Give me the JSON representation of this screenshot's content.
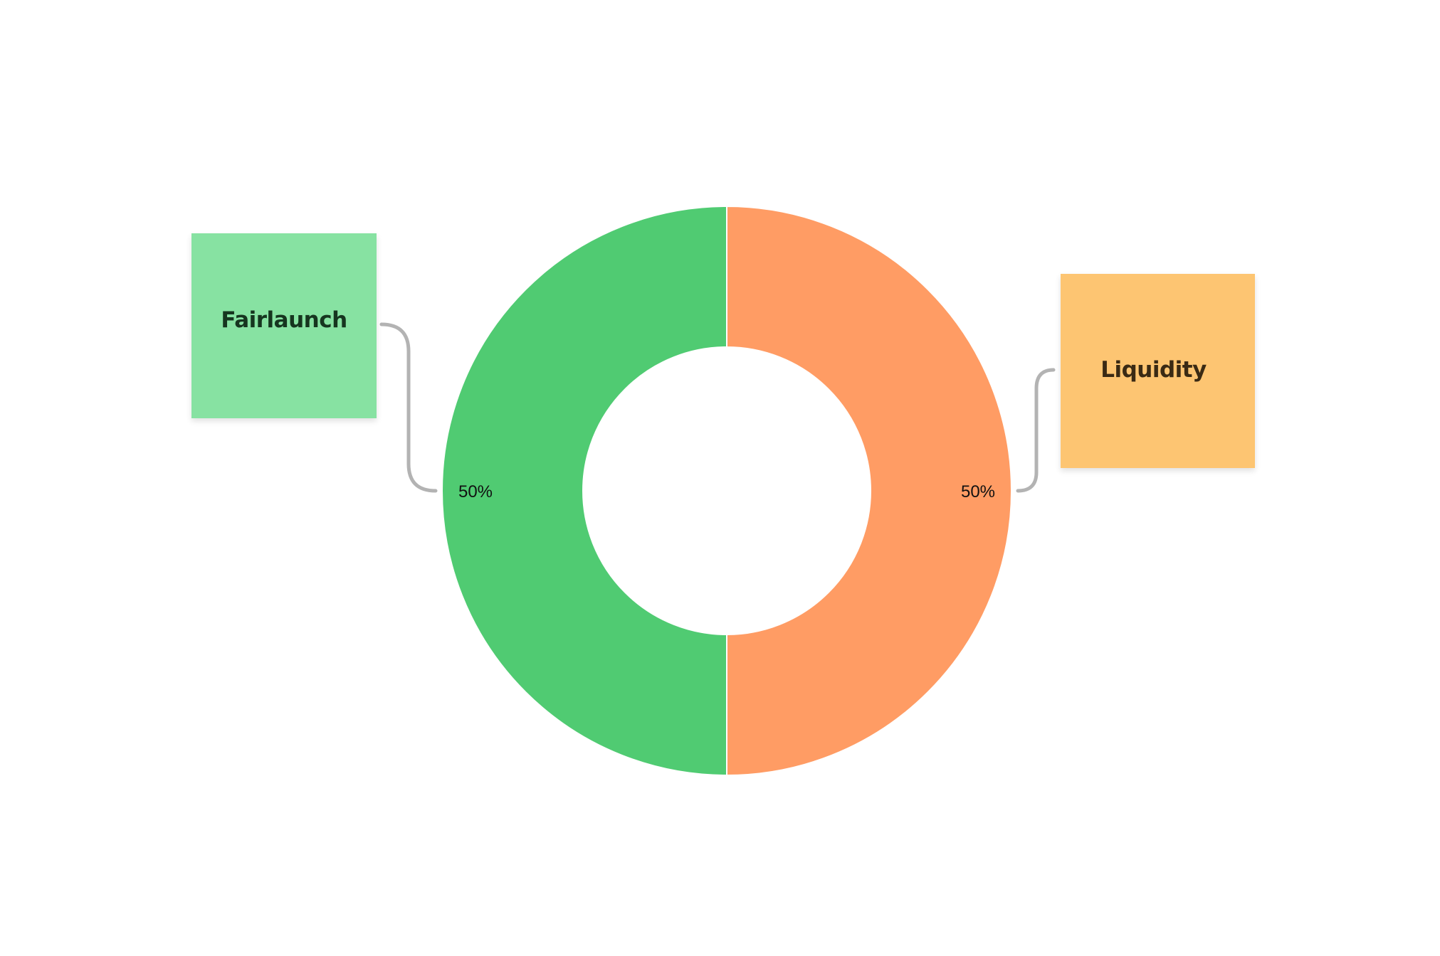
{
  "chart_data": {
    "type": "pie",
    "donut": true,
    "categories": [
      "Fairlaunch",
      "Liquidity"
    ],
    "values": [
      50,
      50
    ],
    "value_labels": [
      "50%",
      "50%"
    ],
    "colors": [
      "#50cb72",
      "#ff9c64"
    ],
    "callout_colors": [
      "#87e2a2",
      "#fdc572"
    ],
    "connector_color": "#b3b3b3",
    "legend": "callout boxes beside each slice"
  }
}
